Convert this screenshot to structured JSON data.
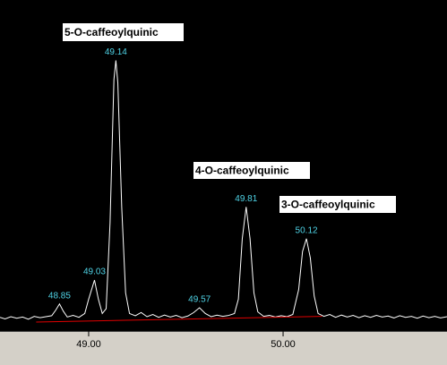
{
  "chart_data": {
    "type": "line",
    "xlim": [
      48.544,
      50.843
    ],
    "ylim": [
      -4,
      100
    ],
    "xticks": [
      {
        "value": 49,
        "label": "49.00"
      },
      {
        "value": 50,
        "label": "50.00"
      }
    ],
    "series": [
      {
        "color": "#ffffff",
        "x": [
          48.544,
          48.57,
          48.6,
          48.63,
          48.66,
          48.69,
          48.72,
          48.75,
          48.78,
          48.81,
          48.83,
          48.85,
          48.87,
          48.89,
          48.92,
          48.95,
          48.98,
          49.0,
          49.03,
          49.05,
          49.07,
          49.09,
          49.11,
          49.13,
          49.14,
          49.15,
          49.17,
          49.19,
          49.21,
          49.24,
          49.27,
          49.3,
          49.33,
          49.36,
          49.39,
          49.42,
          49.45,
          49.48,
          49.51,
          49.54,
          49.57,
          49.6,
          49.63,
          49.66,
          49.69,
          49.72,
          49.75,
          49.77,
          49.79,
          49.81,
          49.83,
          49.85,
          49.87,
          49.9,
          49.93,
          49.96,
          49.99,
          50.02,
          50.05,
          50.08,
          50.1,
          50.12,
          50.14,
          50.16,
          50.18,
          50.21,
          50.24,
          50.27,
          50.3,
          50.33,
          50.36,
          50.39,
          50.42,
          50.45,
          50.48,
          50.51,
          50.54,
          50.57,
          50.6,
          50.63,
          50.66,
          50.69,
          50.72,
          50.75,
          50.78,
          50.81,
          50.843
        ],
        "values": [
          0.3,
          -0.2,
          0.5,
          0,
          0.4,
          -0.3,
          0.6,
          0.2,
          0.5,
          0.8,
          2.5,
          4.5,
          2.2,
          0.4,
          0.9,
          0.3,
          1.5,
          6,
          12,
          6,
          1.5,
          3,
          30,
          75,
          81,
          74,
          35,
          8,
          1.5,
          0.8,
          1.8,
          0.5,
          1.2,
          0.3,
          1,
          0.4,
          0.9,
          0.2,
          0.7,
          1.8,
          3.3,
          1.5,
          0.5,
          1,
          0.6,
          0.9,
          1.5,
          6,
          25,
          35,
          25,
          8,
          2,
          0.6,
          0.9,
          0.4,
          0.8,
          0.5,
          1.2,
          9,
          21,
          25,
          19,
          7,
          1.5,
          0.6,
          1.2,
          0.3,
          1,
          0.4,
          0.9,
          0.2,
          0.8,
          0.3,
          0.9,
          0.4,
          0.7,
          0.1,
          0.8,
          0.3,
          0.6,
          0,
          0.7,
          0.2,
          0.6,
          0.1,
          0.5
        ]
      },
      {
        "color": "#e00000",
        "x": [
          48.73,
          50.2
        ],
        "values": [
          -1.2,
          0.6
        ]
      }
    ],
    "peaks": {
      "color": "#4fd3e6",
      "x": [
        48.85,
        49.03,
        49.14,
        49.57,
        49.81,
        50.12
      ],
      "values": [
        4.5,
        12,
        81,
        3.3,
        35,
        25
      ]
    },
    "annotations": [
      "5-O-caffeoylquinic",
      "4-O-caffeoylquinic",
      "3-O-caffeoylquinic"
    ]
  }
}
